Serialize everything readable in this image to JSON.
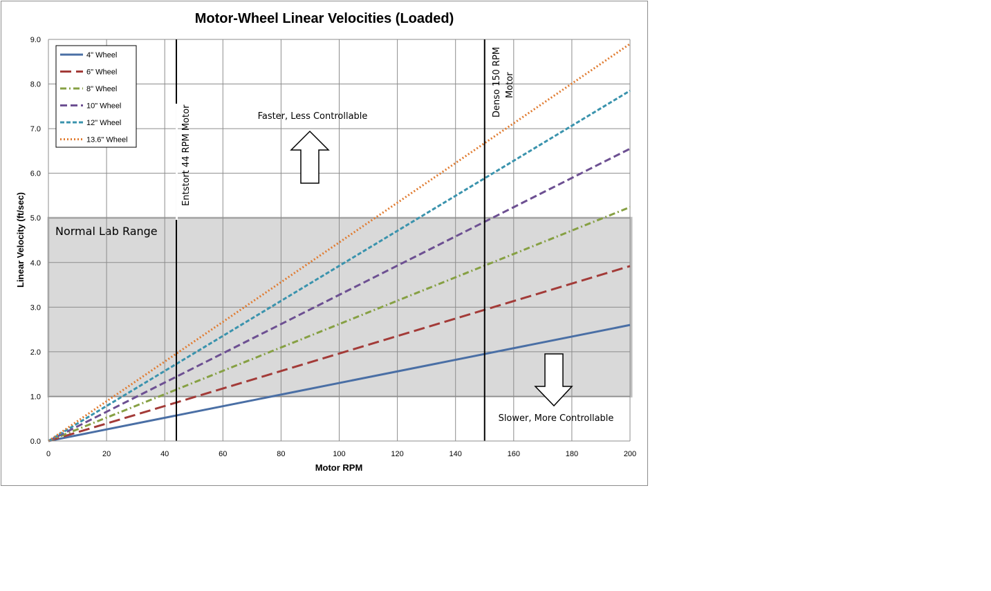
{
  "chart_data": {
    "type": "line",
    "title": "Motor-Wheel Linear Velocities (Loaded)",
    "xlabel": "Motor RPM",
    "ylabel": "Linear Velocity (ft/sec)",
    "xlim": [
      0,
      200
    ],
    "ylim": [
      0,
      9
    ],
    "x_ticks": [
      "0",
      "20",
      "40",
      "60",
      "80",
      "100",
      "120",
      "140",
      "160",
      "180",
      "200"
    ],
    "y_ticks": [
      "0.0",
      "1.0",
      "2.0",
      "3.0",
      "4.0",
      "5.0",
      "6.0",
      "7.0",
      "8.0",
      "9.0"
    ],
    "grid": true,
    "legend_position": "top-left",
    "x": [
      0,
      200
    ],
    "series": [
      {
        "name": "4\" Wheel",
        "values": [
          0,
          2.6
        ],
        "color": "#4a6fa5",
        "style": "solid"
      },
      {
        "name": "6\" Wheel",
        "values": [
          0,
          3.92
        ],
        "color": "#a33b38",
        "style": "long-dash"
      },
      {
        "name": "8\" Wheel",
        "values": [
          0,
          5.24
        ],
        "color": "#86a043",
        "style": "dash-dot"
      },
      {
        "name": "10\" Wheel",
        "values": [
          0,
          6.55
        ],
        "color": "#6d5092",
        "style": "dash"
      },
      {
        "name": "12\" Wheel",
        "values": [
          0,
          7.85
        ],
        "color": "#3a93ad",
        "style": "short-dash"
      },
      {
        "name": "13.6\" Wheel",
        "values": [
          0,
          8.9
        ],
        "color": "#e07b30",
        "style": "dot"
      }
    ],
    "shaded_band": {
      "label": "Normal Lab Range",
      "y_from": 1.0,
      "y_to": 5.0,
      "color": "#d9d9d9"
    },
    "vertical_markers": [
      {
        "x": 44,
        "label": "Entstort 44 RPM Motor"
      },
      {
        "x": 150,
        "label_lines": [
          "Denso 150 RPM",
          "Motor"
        ]
      }
    ],
    "annotations": {
      "upper": "Faster, Less Controllable",
      "lower": "Slower, More Controllable"
    }
  }
}
